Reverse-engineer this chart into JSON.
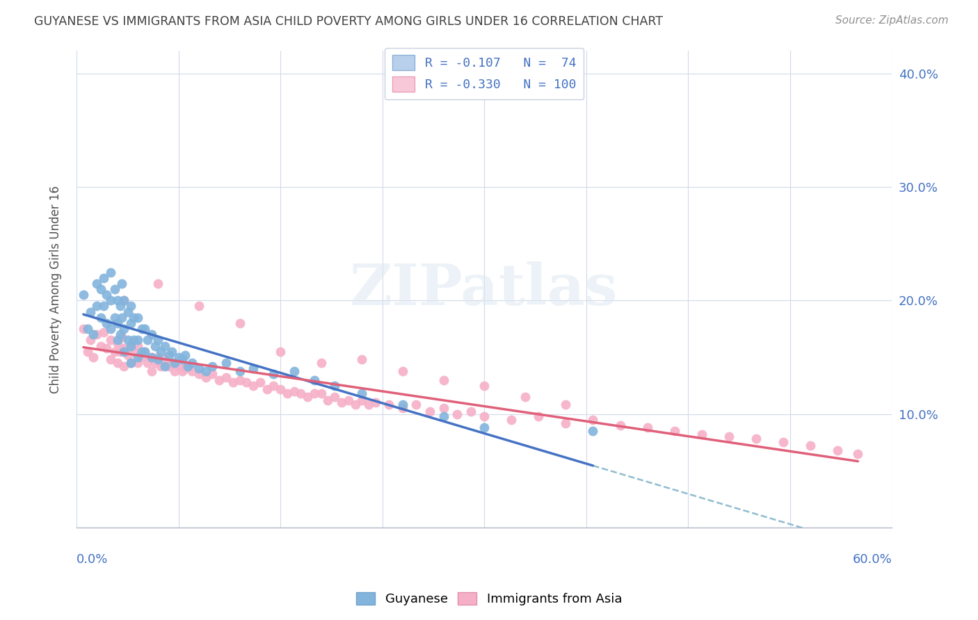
{
  "title": "GUYANESE VS IMMIGRANTS FROM ASIA CHILD POVERTY AMONG GIRLS UNDER 16 CORRELATION CHART",
  "source": "Source: ZipAtlas.com",
  "ylabel": "Child Poverty Among Girls Under 16",
  "xlim": [
    0.0,
    0.6
  ],
  "ylim": [
    0.0,
    0.42
  ],
  "yticks": [
    0.1,
    0.2,
    0.3,
    0.4
  ],
  "ytick_labels": [
    "10.0%",
    "20.0%",
    "30.0%",
    "40.0%"
  ],
  "xticks": [
    0.0,
    0.075,
    0.15,
    0.225,
    0.3,
    0.375,
    0.45,
    0.525,
    0.6
  ],
  "legend_entries": [
    {
      "label": "R = -0.107   N =  74",
      "facecolor": "#b8d0eb",
      "edgecolor": "#8ab0d8"
    },
    {
      "label": "R = -0.330   N = 100",
      "facecolor": "#f9c8d8",
      "edgecolor": "#e8a0b8"
    }
  ],
  "watermark": "ZIPatlas",
  "guyanese_color": "#82b4dc",
  "guyanese_edge": "#82b4dc",
  "asia_color": "#f5b0c8",
  "asia_edge": "#f5b0c8",
  "guyanese_line_color": "#4472c4",
  "asia_line_color": "#e0607a",
  "dashed_line_color": "#90bcd0",
  "guyanese_x": [
    0.005,
    0.008,
    0.01,
    0.012,
    0.015,
    0.015,
    0.018,
    0.018,
    0.02,
    0.02,
    0.022,
    0.022,
    0.025,
    0.025,
    0.025,
    0.028,
    0.028,
    0.03,
    0.03,
    0.03,
    0.032,
    0.032,
    0.033,
    0.033,
    0.035,
    0.035,
    0.035,
    0.038,
    0.038,
    0.04,
    0.04,
    0.04,
    0.04,
    0.042,
    0.042,
    0.045,
    0.045,
    0.045,
    0.048,
    0.048,
    0.05,
    0.05,
    0.052,
    0.055,
    0.055,
    0.058,
    0.06,
    0.06,
    0.062,
    0.065,
    0.065,
    0.068,
    0.07,
    0.072,
    0.075,
    0.078,
    0.08,
    0.082,
    0.085,
    0.09,
    0.095,
    0.1,
    0.11,
    0.12,
    0.13,
    0.145,
    0.16,
    0.175,
    0.19,
    0.21,
    0.24,
    0.27,
    0.3,
    0.38
  ],
  "guyanese_y": [
    0.205,
    0.175,
    0.19,
    0.17,
    0.215,
    0.195,
    0.21,
    0.185,
    0.22,
    0.195,
    0.205,
    0.18,
    0.225,
    0.2,
    0.175,
    0.21,
    0.185,
    0.2,
    0.18,
    0.165,
    0.195,
    0.17,
    0.215,
    0.185,
    0.2,
    0.175,
    0.155,
    0.19,
    0.165,
    0.195,
    0.18,
    0.16,
    0.145,
    0.185,
    0.165,
    0.185,
    0.165,
    0.15,
    0.175,
    0.155,
    0.175,
    0.155,
    0.165,
    0.17,
    0.15,
    0.16,
    0.165,
    0.148,
    0.155,
    0.16,
    0.142,
    0.152,
    0.155,
    0.145,
    0.15,
    0.148,
    0.152,
    0.142,
    0.145,
    0.14,
    0.138,
    0.142,
    0.145,
    0.138,
    0.14,
    0.135,
    0.138,
    0.13,
    0.125,
    0.118,
    0.108,
    0.098,
    0.088,
    0.085
  ],
  "asia_x": [
    0.005,
    0.008,
    0.01,
    0.012,
    0.015,
    0.018,
    0.02,
    0.022,
    0.025,
    0.025,
    0.028,
    0.03,
    0.03,
    0.032,
    0.033,
    0.035,
    0.035,
    0.038,
    0.04,
    0.04,
    0.042,
    0.045,
    0.045,
    0.048,
    0.05,
    0.052,
    0.055,
    0.055,
    0.058,
    0.06,
    0.062,
    0.065,
    0.068,
    0.07,
    0.072,
    0.075,
    0.078,
    0.08,
    0.085,
    0.09,
    0.095,
    0.1,
    0.105,
    0.11,
    0.115,
    0.12,
    0.125,
    0.13,
    0.135,
    0.14,
    0.145,
    0.15,
    0.155,
    0.16,
    0.165,
    0.17,
    0.175,
    0.18,
    0.185,
    0.19,
    0.195,
    0.2,
    0.205,
    0.21,
    0.215,
    0.22,
    0.23,
    0.24,
    0.25,
    0.26,
    0.27,
    0.28,
    0.29,
    0.3,
    0.32,
    0.34,
    0.36,
    0.38,
    0.4,
    0.42,
    0.44,
    0.46,
    0.48,
    0.5,
    0.52,
    0.54,
    0.56,
    0.575,
    0.035,
    0.06,
    0.09,
    0.12,
    0.15,
    0.18,
    0.21,
    0.24,
    0.27,
    0.3,
    0.33,
    0.36
  ],
  "asia_y": [
    0.175,
    0.155,
    0.165,
    0.15,
    0.17,
    0.16,
    0.172,
    0.158,
    0.165,
    0.148,
    0.155,
    0.162,
    0.145,
    0.155,
    0.168,
    0.158,
    0.142,
    0.152,
    0.16,
    0.145,
    0.155,
    0.16,
    0.145,
    0.15,
    0.155,
    0.145,
    0.15,
    0.138,
    0.145,
    0.15,
    0.142,
    0.148,
    0.142,
    0.145,
    0.138,
    0.142,
    0.138,
    0.14,
    0.138,
    0.135,
    0.132,
    0.135,
    0.13,
    0.132,
    0.128,
    0.13,
    0.128,
    0.125,
    0.128,
    0.122,
    0.125,
    0.122,
    0.118,
    0.12,
    0.118,
    0.115,
    0.118,
    0.118,
    0.112,
    0.115,
    0.11,
    0.112,
    0.108,
    0.112,
    0.108,
    0.11,
    0.108,
    0.105,
    0.108,
    0.102,
    0.105,
    0.1,
    0.102,
    0.098,
    0.095,
    0.098,
    0.092,
    0.095,
    0.09,
    0.088,
    0.085,
    0.082,
    0.08,
    0.078,
    0.075,
    0.072,
    0.068,
    0.065,
    0.2,
    0.215,
    0.195,
    0.18,
    0.155,
    0.145,
    0.148,
    0.138,
    0.13,
    0.125,
    0.115,
    0.108
  ]
}
